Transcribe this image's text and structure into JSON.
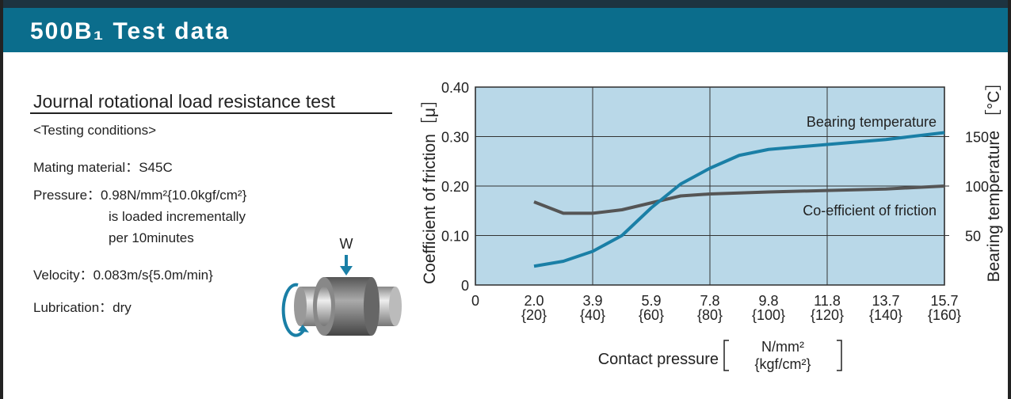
{
  "header": {
    "title": "500B₁ Test data"
  },
  "section": {
    "title": "Journal rotational load resistance test",
    "conditions_heading": "<Testing conditions>",
    "conditions": [
      {
        "label": "Mating material：",
        "lines": [
          "S45C"
        ]
      },
      {
        "label": "Pressure：",
        "lines": [
          "0.98N/mm²{10.0kgf/cm²}",
          "is loaded incrementally",
          "per 10minutes"
        ]
      },
      {
        "label": "Velocity：",
        "lines": [
          "0.083m/s{5.0m/min}"
        ]
      },
      {
        "label": "Lubrication：",
        "lines": [
          "dry"
        ]
      }
    ],
    "diagram_load": "W"
  },
  "chart_data": {
    "type": "line",
    "y_label": "Coefficient of friction［μ］",
    "y2_label": "Bearing temperature ［°C］",
    "x_label": "Contact pressure",
    "x_unit_top": "N/mm²",
    "x_unit_bottom": "{kgf/cm²}",
    "x": [
      20,
      30,
      40,
      50,
      60,
      70,
      80,
      90,
      100,
      120,
      140,
      160
    ],
    "xlim": [
      0,
      160
    ],
    "xticks": [
      0,
      {
        "value": 20,
        "label": "2.0"
      },
      {
        "value": 40,
        "label": "3.9"
      },
      {
        "value": 60,
        "label": "5.9"
      },
      {
        "value": 80,
        "label": "7.8"
      },
      {
        "value": 100,
        "label": "9.8"
      },
      {
        "value": 120,
        "label": "11.8"
      },
      {
        "value": 140,
        "label": "13.7"
      },
      {
        "value": 160,
        "label": "15.7"
      }
    ],
    "xtick_sublabels": [
      null,
      "{20}",
      "{40}",
      "{60}",
      "{80}",
      "{100}",
      "{120}",
      "{140}",
      "{160}"
    ],
    "xgrid": [
      40,
      80,
      120
    ],
    "ylim": [
      0,
      0.4
    ],
    "yticks": [
      0,
      {
        "value": 0.1,
        "label": "0.10"
      },
      {
        "value": 0.2,
        "label": "0.20"
      },
      {
        "value": 0.3,
        "label": "0.30"
      },
      {
        "value": 0.4,
        "label": "0.40"
      }
    ],
    "y2lim": [
      0,
      200
    ],
    "y2ticks": [
      50,
      100,
      150
    ],
    "grid": true,
    "background": "#b9d8e8",
    "series": [
      {
        "name": "Co-efficient of friction",
        "color": "#555555",
        "values": [
          0.168,
          0.145,
          0.145,
          0.152,
          0.166,
          0.18,
          0.184,
          0.186,
          0.188,
          0.191,
          0.194,
          0.2
        ]
      },
      {
        "name": "Bearing temperature",
        "color": "#1a7fa6",
        "axis": "y2",
        "values": [
          19,
          24,
          34,
          50,
          78,
          102,
          118,
          131,
          137,
          142,
          147,
          154
        ]
      }
    ]
  }
}
